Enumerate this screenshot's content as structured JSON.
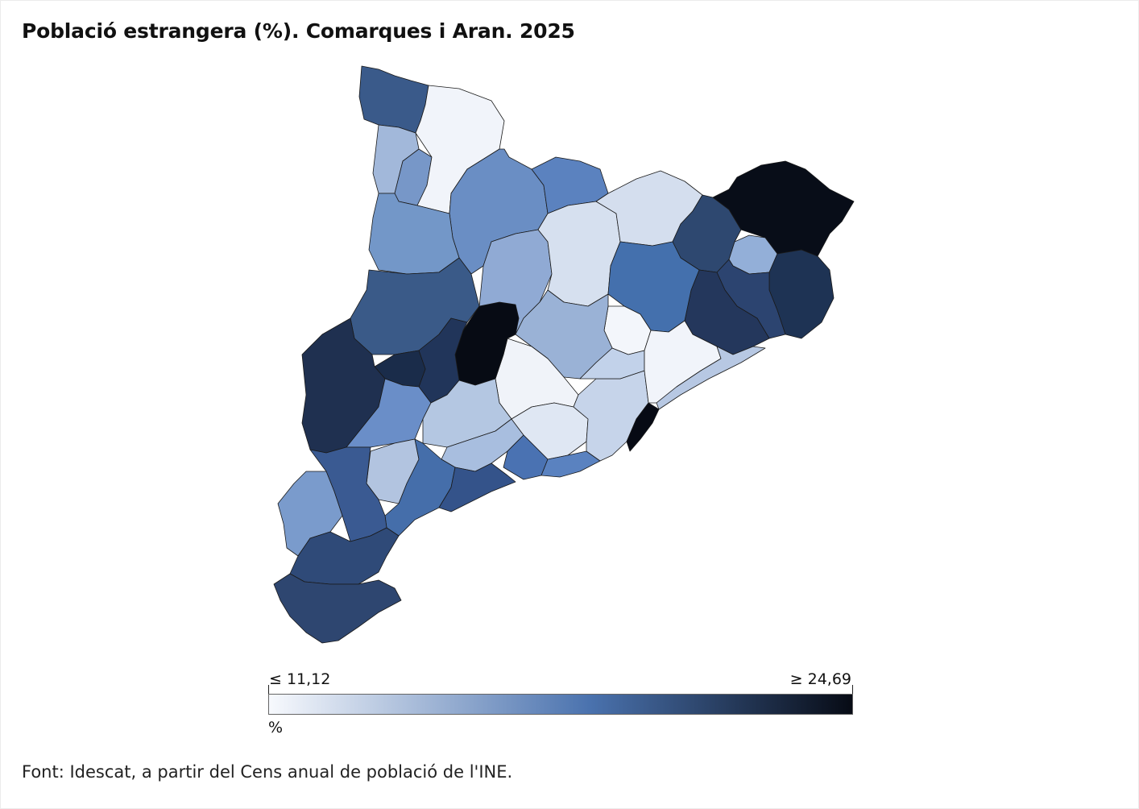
{
  "title": "Població estrangera (%). Comarques i Aran. 2025",
  "legend": {
    "min_label": "≤ 11,12",
    "max_label": "≥ 24,69",
    "unit": "%",
    "color_low": "#f7f9fd",
    "color_mid": "#4a72ae",
    "color_high": "#070b15"
  },
  "source": "Font: Idescat, a partir del Cens anual de població de l'INE."
}
